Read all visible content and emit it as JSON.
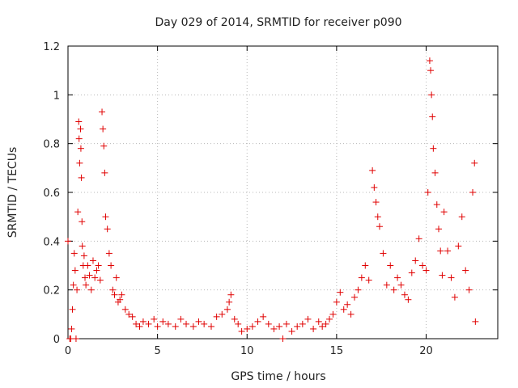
{
  "chart_data": {
    "type": "scatter",
    "title": "Day 029 of 2014, SRMTID for receiver p090",
    "xlabel": "GPS time / hours",
    "ylabel": "SRMTID / TECUs",
    "xlim": [
      0,
      24
    ],
    "ylim": [
      0,
      1.2
    ],
    "xticks": [
      0,
      5,
      10,
      15,
      20
    ],
    "xtick_labels": [
      "0",
      "5",
      "10",
      "15",
      "20"
    ],
    "yticks": [
      0,
      0.2,
      0.4,
      0.6,
      0.8,
      1.0,
      1.2
    ],
    "ytick_labels": [
      "0",
      "0.2",
      "0.4",
      "0.6",
      "0.8",
      "1",
      "1.2"
    ],
    "grid": true,
    "marker": "+",
    "series_color": "#e00000",
    "series": [
      {
        "name": "SRMTID p090",
        "x": [
          0.0,
          0.1,
          0.15,
          0.2,
          0.25,
          0.3,
          0.35,
          0.4,
          0.45,
          0.5,
          0.55,
          0.6,
          0.62,
          0.65,
          0.7,
          0.72,
          0.75,
          0.78,
          0.8,
          0.85,
          0.9,
          0.95,
          1.0,
          1.1,
          1.2,
          1.3,
          1.4,
          1.5,
          1.6,
          1.7,
          1.8,
          1.9,
          1.95,
          2.0,
          2.05,
          2.1,
          2.2,
          2.3,
          2.4,
          2.5,
          2.6,
          2.7,
          2.8,
          2.9,
          3.0,
          3.2,
          3.4,
          3.6,
          3.8,
          4.0,
          4.2,
          4.5,
          4.8,
          5.0,
          5.3,
          5.6,
          6.0,
          6.3,
          6.6,
          7.0,
          7.3,
          7.6,
          8.0,
          8.3,
          8.6,
          8.9,
          9.0,
          9.1,
          9.3,
          9.5,
          9.7,
          10.0,
          10.3,
          10.6,
          10.9,
          11.2,
          11.5,
          11.8,
          12.0,
          12.2,
          12.5,
          12.8,
          13.1,
          13.4,
          13.7,
          14.0,
          14.2,
          14.4,
          14.6,
          14.8,
          15.0,
          15.2,
          15.4,
          15.6,
          15.8,
          16.0,
          16.2,
          16.4,
          16.6,
          16.8,
          17.0,
          17.1,
          17.2,
          17.3,
          17.4,
          17.6,
          17.8,
          18.0,
          18.2,
          18.4,
          18.6,
          18.8,
          19.0,
          19.2,
          19.4,
          19.6,
          19.8,
          20.0,
          20.1,
          20.2,
          20.25,
          20.3,
          20.35,
          20.4,
          20.5,
          20.6,
          20.7,
          20.8,
          20.9,
          21.0,
          21.2,
          21.4,
          21.6,
          21.8,
          22.0,
          22.2,
          22.4,
          22.6,
          22.7,
          22.75
        ],
        "y": [
          0.4,
          0.0,
          0.0,
          0.04,
          0.12,
          0.22,
          0.35,
          0.28,
          0.0,
          0.2,
          0.52,
          0.89,
          0.82,
          0.72,
          0.86,
          0.78,
          0.66,
          0.48,
          0.38,
          0.3,
          0.34,
          0.25,
          0.22,
          0.3,
          0.26,
          0.2,
          0.32,
          0.25,
          0.28,
          0.3,
          0.24,
          0.93,
          0.86,
          0.79,
          0.68,
          0.5,
          0.45,
          0.35,
          0.3,
          0.2,
          0.18,
          0.25,
          0.15,
          0.16,
          0.18,
          0.12,
          0.1,
          0.09,
          0.06,
          0.05,
          0.07,
          0.06,
          0.08,
          0.05,
          0.07,
          0.06,
          0.05,
          0.08,
          0.06,
          0.05,
          0.07,
          0.06,
          0.05,
          0.09,
          0.1,
          0.12,
          0.15,
          0.18,
          0.08,
          0.06,
          0.03,
          0.04,
          0.05,
          0.07,
          0.09,
          0.06,
          0.04,
          0.05,
          0.0,
          0.06,
          0.03,
          0.05,
          0.06,
          0.08,
          0.04,
          0.07,
          0.05,
          0.06,
          0.08,
          0.1,
          0.15,
          0.19,
          0.12,
          0.14,
          0.1,
          0.17,
          0.2,
          0.25,
          0.3,
          0.24,
          0.69,
          0.62,
          0.56,
          0.5,
          0.46,
          0.35,
          0.22,
          0.3,
          0.2,
          0.25,
          0.22,
          0.18,
          0.16,
          0.27,
          0.32,
          0.41,
          0.3,
          0.28,
          0.6,
          1.14,
          1.1,
          1.0,
          0.91,
          0.78,
          0.68,
          0.55,
          0.45,
          0.36,
          0.26,
          0.52,
          0.36,
          0.25,
          0.17,
          0.38,
          0.5,
          0.28,
          0.2,
          0.6,
          0.72,
          0.07
        ]
      }
    ]
  }
}
